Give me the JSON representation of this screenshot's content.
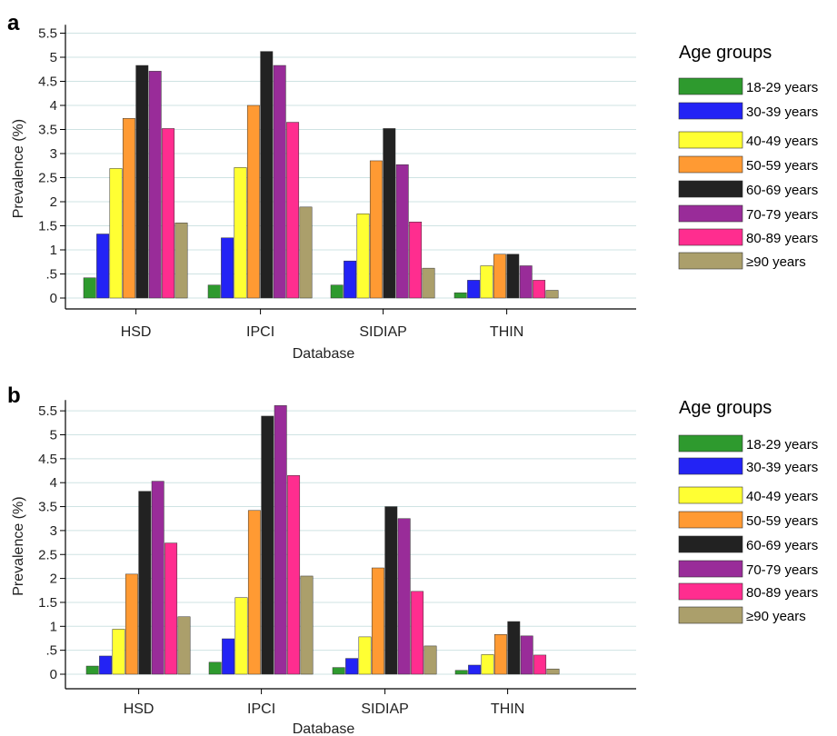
{
  "chart_data": [
    {
      "type": "bar",
      "panel": "a",
      "categories": [
        "HSD",
        "IPCI",
        "SIDIAP",
        "THIN"
      ],
      "xlabel": "Database",
      "ylabel": "Prevalence (%)",
      "ylim": [
        0,
        5.6
      ],
      "yticks": [
        "0",
        ".5",
        "1",
        "1.5",
        "2",
        "2.5",
        "3",
        "3.5",
        "4",
        "4.5",
        "5",
        "5.5"
      ],
      "grid": true,
      "legend_title": "Age groups",
      "legend_position": "right",
      "series": [
        {
          "name": "18-29 years",
          "color": "#2e9a2e",
          "values": [
            0.42,
            0.27,
            0.27,
            0.11
          ]
        },
        {
          "name": "30-39 years",
          "color": "#2323f5",
          "values": [
            1.33,
            1.25,
            0.77,
            0.37
          ]
        },
        {
          "name": "40-49 years",
          "color": "#ffff33",
          "values": [
            2.69,
            2.71,
            1.75,
            0.67
          ]
        },
        {
          "name": "50-59 years",
          "color": "#ff9a33",
          "values": [
            3.73,
            4.0,
            2.85,
            0.91
          ]
        },
        {
          "name": "60-69 years",
          "color": "#222222",
          "values": [
            4.83,
            5.12,
            3.52,
            0.91
          ]
        },
        {
          "name": "70-79 years",
          "color": "#992c99",
          "values": [
            4.71,
            4.83,
            2.77,
            0.67
          ]
        },
        {
          "name": "80-89 years",
          "color": "#ff2d8f",
          "values": [
            3.52,
            3.65,
            1.58,
            0.37
          ]
        },
        {
          "name": "≥90 years",
          "color": "#ab9f6b",
          "values": [
            1.56,
            1.89,
            0.62,
            0.16
          ]
        }
      ]
    },
    {
      "type": "bar",
      "panel": "b",
      "categories": [
        "HSD",
        "IPCI",
        "SIDIAP",
        "THIN"
      ],
      "xlabel": "Database",
      "ylabel": "Prevalence (%)",
      "ylim": [
        0,
        5.65
      ],
      "yticks": [
        "0",
        ".5",
        "1",
        "1.5",
        "2",
        "2.5",
        "3",
        "3.5",
        "4",
        "4.5",
        "5",
        "5.5"
      ],
      "grid": true,
      "legend_title": "Age groups",
      "legend_position": "right",
      "series": [
        {
          "name": "18-29 years",
          "color": "#2e9a2e",
          "values": [
            0.17,
            0.25,
            0.14,
            0.08
          ]
        },
        {
          "name": "30-39 years",
          "color": "#2323f5",
          "values": [
            0.38,
            0.74,
            0.33,
            0.19
          ]
        },
        {
          "name": "40-49 years",
          "color": "#ffff33",
          "values": [
            0.94,
            1.6,
            0.78,
            0.41
          ]
        },
        {
          "name": "50-59 years",
          "color": "#ff9a33",
          "values": [
            2.09,
            3.42,
            2.22,
            0.83
          ]
        },
        {
          "name": "60-69 years",
          "color": "#222222",
          "values": [
            3.82,
            5.39,
            3.5,
            1.1
          ]
        },
        {
          "name": "70-79 years",
          "color": "#992c99",
          "values": [
            4.03,
            5.61,
            3.25,
            0.8
          ]
        },
        {
          "name": "80-89 years",
          "color": "#ff2d8f",
          "values": [
            2.74,
            4.15,
            1.73,
            0.4
          ]
        },
        {
          "name": "≥90 years",
          "color": "#ab9f6b",
          "values": [
            1.2,
            2.05,
            0.59,
            0.11
          ]
        }
      ]
    }
  ]
}
